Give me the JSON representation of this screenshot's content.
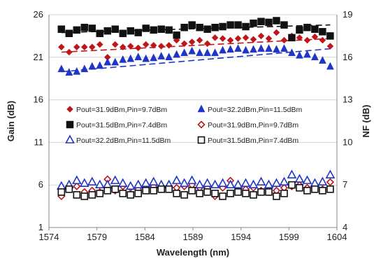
{
  "chart_data": {
    "type": "scatter",
    "xlabel": "Wavelength (nm)",
    "ylabel_left": "Gain (dB)",
    "ylabel_right": "NF (dB)",
    "xlim": [
      1574,
      1604
    ],
    "ylim_left": [
      1,
      26
    ],
    "ylim_right": [
      4,
      19
    ],
    "x_ticks": [
      1574,
      1579,
      1584,
      1589,
      1594,
      1599,
      1604
    ],
    "y_ticks_left": [
      1,
      6,
      11,
      16,
      21,
      26
    ],
    "y_ticks_right": [
      4,
      7,
      10,
      13,
      16,
      19
    ],
    "grid": "horizontal",
    "x": [
      1575.3,
      1576.1,
      1576.9,
      1577.7,
      1578.5,
      1579.3,
      1580.1,
      1580.9,
      1581.7,
      1582.5,
      1583.3,
      1584.1,
      1584.9,
      1585.7,
      1586.5,
      1587.3,
      1588.1,
      1588.9,
      1589.7,
      1590.5,
      1591.3,
      1592.1,
      1592.9,
      1593.7,
      1594.5,
      1595.3,
      1596.1,
      1596.9,
      1597.7,
      1598.5,
      1599.3,
      1600.1,
      1600.9,
      1601.7,
      1602.5,
      1603.3
    ],
    "series": [
      {
        "name": "Pout=31.9dBm,Pin=9.7dBm",
        "axis": "left",
        "marker": "filled-diamond",
        "color": "#c0161a",
        "trend": [
          21.6,
          23.2
        ],
        "values": [
          22.2,
          21.6,
          22.2,
          22.2,
          22.2,
          22.5,
          21.0,
          22.5,
          22.2,
          22.3,
          22.1,
          22.5,
          22.4,
          22.3,
          22.4,
          23.0,
          22.6,
          22.8,
          23.0,
          22.6,
          23.3,
          23.2,
          23.0,
          23.2,
          23.3,
          23.1,
          23.5,
          23.2,
          23.9,
          23.0,
          23.5,
          23.3,
          23.0,
          23.4,
          23.0,
          22.3
        ]
      },
      {
        "name": "Pout=32.2dBm,Pin=11.5dBm",
        "axis": "left",
        "marker": "filled-triangle",
        "color": "#1f35c8",
        "trend": [
          19.3,
          22.0
        ],
        "values": [
          19.6,
          19.2,
          19.3,
          19.6,
          19.9,
          20.0,
          20.4,
          20.4,
          20.7,
          20.8,
          21.0,
          20.8,
          20.9,
          21.1,
          21.0,
          21.3,
          21.5,
          21.7,
          21.5,
          21.5,
          21.5,
          21.8,
          21.9,
          22.0,
          21.8,
          21.9,
          22.0,
          22.0,
          21.9,
          22.0,
          21.5,
          21.2,
          21.3,
          21.0,
          20.6,
          19.9
        ]
      },
      {
        "name": "Pout=31.5dBm,Pin=7.4dBm",
        "axis": "left",
        "marker": "filled-square",
        "color": "#111111",
        "trend": [
          23.9,
          24.8
        ],
        "values": [
          24.3,
          23.8,
          24.2,
          24.5,
          24.4,
          23.8,
          24.1,
          24.3,
          23.8,
          24.1,
          23.9,
          24.4,
          24.2,
          24.3,
          24.2,
          23.6,
          24.5,
          24.8,
          24.5,
          24.3,
          24.5,
          24.6,
          24.8,
          24.8,
          24.6,
          25.0,
          25.2,
          25.1,
          25.3,
          24.8,
          23.3,
          24.2,
          24.5,
          24.3,
          24.0,
          23.5
        ]
      },
      {
        "name": "Pout=31.9dBm,Pin=9.7dBm",
        "axis": "right",
        "marker": "open-diamond",
        "color": "#c0161a",
        "values": [
          6.2,
          6.8,
          6.9,
          6.5,
          6.6,
          6.5,
          7.4,
          6.6,
          6.9,
          6.8,
          6.7,
          6.8,
          6.9,
          6.8,
          6.8,
          6.8,
          6.9,
          7.0,
          6.8,
          6.8,
          6.2,
          6.8,
          7.3,
          6.7,
          6.7,
          6.8,
          6.6,
          6.5,
          6.6,
          6.8,
          6.9,
          7.0,
          6.8,
          6.8,
          6.7,
          7.2
        ]
      },
      {
        "name": "Pout=32.2dBm,Pin=11.5dBm",
        "axis": "right",
        "marker": "open-triangle",
        "color": "#1f35c8",
        "values": [
          6.9,
          7.0,
          7.3,
          7.1,
          7.2,
          7.0,
          7.0,
          7.3,
          7.1,
          6.9,
          7.0,
          7.1,
          7.2,
          7.0,
          7.0,
          7.3,
          7.1,
          7.3,
          7.0,
          7.1,
          7.0,
          7.1,
          7.0,
          7.0,
          7.1,
          7.0,
          7.2,
          7.0,
          7.1,
          7.2,
          7.7,
          7.4,
          7.3,
          7.1,
          7.2,
          7.7
        ]
      },
      {
        "name": "Pout=31.5dBm,Pin=7.4dBm",
        "axis": "right",
        "marker": "open-square",
        "color": "#111111",
        "values": [
          6.5,
          6.7,
          6.3,
          6.2,
          6.3,
          6.4,
          6.6,
          6.7,
          6.4,
          6.3,
          6.4,
          6.6,
          6.6,
          6.7,
          6.7,
          6.4,
          6.3,
          6.6,
          6.4,
          6.5,
          6.4,
          6.2,
          6.4,
          6.5,
          6.4,
          6.3,
          6.5,
          6.5,
          6.2,
          6.4,
          7.0,
          6.8,
          6.6,
          6.7,
          6.6,
          6.7
        ]
      }
    ]
  }
}
